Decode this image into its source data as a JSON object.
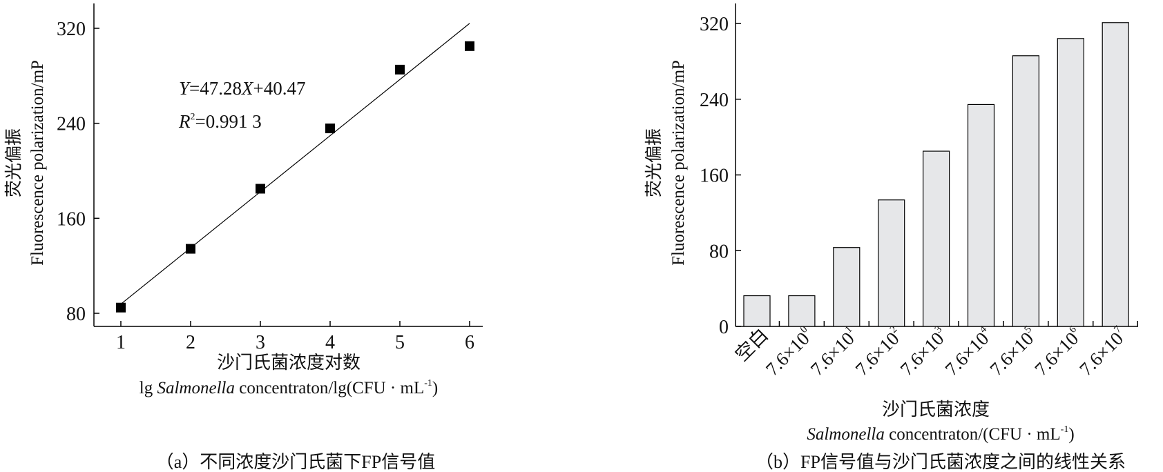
{
  "chart_data": [
    {
      "type": "scatter",
      "panel_caption": "（a）不同浓度沙门氏菌下FP信号值",
      "x": [
        1,
        2,
        3,
        4,
        5,
        6
      ],
      "y": [
        84.8,
        134.3,
        184.9,
        235.7,
        285.2,
        305.0
      ],
      "fit": {
        "slope": 47.28,
        "intercept": 40.47,
        "equation": "Y=47.28X+40.47",
        "r2_label": "R",
        "r2_sup": "2",
        "r2_value": "=0.991 3"
      },
      "xlabel_cn": "沙门氏菌浓度对数",
      "xlabel_en": "lg Salmonella concentraton/lg(CFU · mL⁻¹)",
      "xlabel_en_parts": {
        "pre": "lg ",
        "italic": "Salmonella",
        "post": " concentraton/lg(CFU · mL",
        "sup": "-1",
        "end": ")"
      },
      "ylabel_cn": "荧光偏振",
      "ylabel_en": "Fluorescence polarization/mP",
      "xticks": [
        "1",
        "2",
        "3",
        "4",
        "5",
        "6"
      ],
      "yticks": [
        "80",
        "160",
        "240",
        "320"
      ],
      "xlim": [
        0.6,
        6.45
      ],
      "ylim": [
        80,
        320
      ],
      "grid": false
    },
    {
      "type": "bar",
      "panel_caption": "（b）FP信号值与沙门氏菌浓度之间的线性关系",
      "categories": [
        "空白",
        "7.6×10^0",
        "7.6×10^1",
        "7.6×10^2",
        "7.6×10^3",
        "7.6×10^4",
        "7.6×10^5",
        "7.6×10^6",
        "7.6×10^7"
      ],
      "category_labels": [
        {
          "base": "空白",
          "sup": ""
        },
        {
          "base": "7.6×10",
          "sup": "0"
        },
        {
          "base": "7.6×10",
          "sup": "1"
        },
        {
          "base": "7.6×10",
          "sup": "2"
        },
        {
          "base": "7.6×10",
          "sup": "3"
        },
        {
          "base": "7.6×10",
          "sup": "4"
        },
        {
          "base": "7.6×10",
          "sup": "5"
        },
        {
          "base": "7.6×10",
          "sup": "6"
        },
        {
          "base": "7.6×10",
          "sup": "7"
        }
      ],
      "values": [
        32.4,
        32.4,
        83.3,
        133.6,
        185.1,
        234.4,
        285.9,
        304.1,
        320.9
      ],
      "xlabel_cn": "沙门氏菌浓度",
      "xlabel_en": "Salmonella concentraton/(CFU · mL⁻¹)",
      "xlabel_en_parts": {
        "pre": "",
        "italic": "Salmonella",
        "post": " concentraton/(CFU · mL",
        "sup": "-1",
        "end": ")"
      },
      "ylabel_cn": "荧光偏振",
      "ylabel_en": "Fluorescence polarization/mP",
      "yticks": [
        "0",
        "80",
        "160",
        "240",
        "320"
      ],
      "ylim": [
        0,
        340
      ],
      "bar_color": "#e6e7e9",
      "grid": false
    }
  ]
}
